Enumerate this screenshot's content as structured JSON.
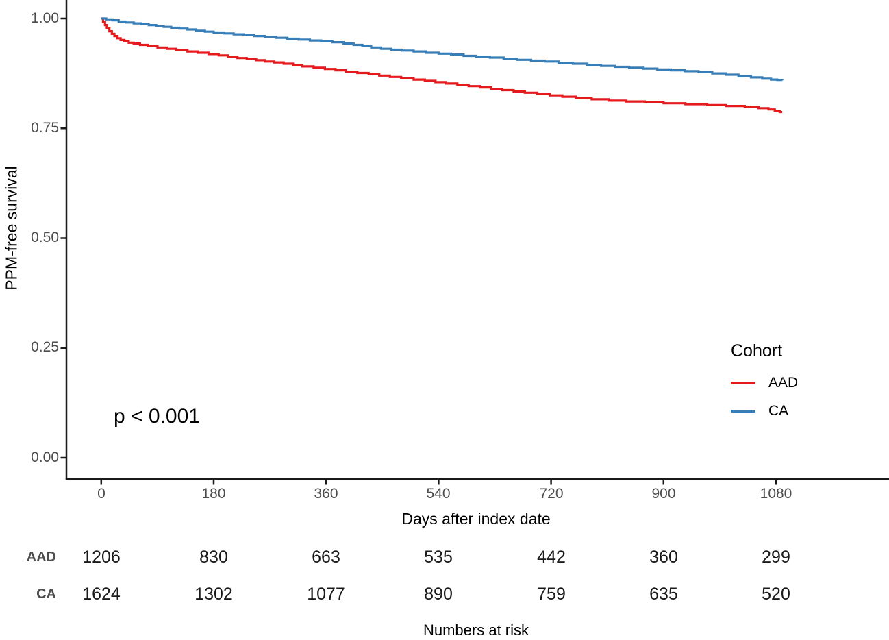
{
  "chart_data": {
    "type": "line",
    "subtype": "kaplan-meier-step",
    "title": "",
    "xlabel": "Days after index date",
    "ylabel": "PPM-free survival",
    "xlim": [
      0,
      1260
    ],
    "ylim": [
      0.0,
      1.0
    ],
    "x_ticks": [
      0,
      180,
      360,
      540,
      720,
      900,
      1080
    ],
    "y_ticks": [
      1.0,
      0.75,
      0.5,
      0.25,
      0.0
    ],
    "y_tick_labels": [
      "1.00",
      "0.75",
      "0.50",
      "0.25",
      "0.00"
    ],
    "grid": false,
    "annotation": "p < 0.001",
    "legend": {
      "title": "Cohort",
      "position": "right-lower",
      "entries": [
        {
          "label": "AAD",
          "color": "#E41A1C"
        },
        {
          "label": "CA",
          "color": "#377EB8"
        }
      ]
    },
    "series": [
      {
        "name": "AAD",
        "color": "#E41A1C",
        "points": [
          [
            0,
            1.0
          ],
          [
            3,
            0.992
          ],
          [
            6,
            0.985
          ],
          [
            9,
            0.978
          ],
          [
            13,
            0.971
          ],
          [
            17,
            0.965
          ],
          [
            21,
            0.96
          ],
          [
            26,
            0.955
          ],
          [
            31,
            0.951
          ],
          [
            37,
            0.948
          ],
          [
            44,
            0.945
          ],
          [
            52,
            0.943
          ],
          [
            62,
            0.94
          ],
          [
            75,
            0.937
          ],
          [
            90,
            0.934
          ],
          [
            105,
            0.931
          ],
          [
            120,
            0.928
          ],
          [
            138,
            0.925
          ],
          [
            155,
            0.922
          ],
          [
            172,
            0.919
          ],
          [
            188,
            0.916
          ],
          [
            203,
            0.913
          ],
          [
            218,
            0.91
          ],
          [
            233,
            0.908
          ],
          [
            248,
            0.905
          ],
          [
            262,
            0.902
          ],
          [
            277,
            0.9
          ],
          [
            292,
            0.897
          ],
          [
            307,
            0.894
          ],
          [
            322,
            0.891
          ],
          [
            340,
            0.888
          ],
          [
            358,
            0.885
          ],
          [
            375,
            0.882
          ],
          [
            392,
            0.879
          ],
          [
            410,
            0.876
          ],
          [
            428,
            0.873
          ],
          [
            445,
            0.87
          ],
          [
            462,
            0.867
          ],
          [
            480,
            0.864
          ],
          [
            500,
            0.861
          ],
          [
            518,
            0.858
          ],
          [
            535,
            0.855
          ],
          [
            552,
            0.852
          ],
          [
            570,
            0.849
          ],
          [
            588,
            0.846
          ],
          [
            606,
            0.843
          ],
          [
            624,
            0.84
          ],
          [
            642,
            0.837
          ],
          [
            660,
            0.834
          ],
          [
            678,
            0.831
          ],
          [
            698,
            0.828
          ],
          [
            718,
            0.825
          ],
          [
            738,
            0.822
          ],
          [
            760,
            0.819
          ],
          [
            785,
            0.816
          ],
          [
            812,
            0.813
          ],
          [
            840,
            0.811
          ],
          [
            870,
            0.809
          ],
          [
            900,
            0.807
          ],
          [
            935,
            0.805
          ],
          [
            970,
            0.803
          ],
          [
            1000,
            0.801
          ],
          [
            1030,
            0.799
          ],
          [
            1052,
            0.796
          ],
          [
            1068,
            0.793
          ],
          [
            1078,
            0.79
          ],
          [
            1086,
            0.787
          ],
          [
            1090,
            0.787
          ]
        ]
      },
      {
        "name": "CA",
        "color": "#377EB8",
        "points": [
          [
            0,
            1.0
          ],
          [
            8,
            0.998
          ],
          [
            18,
            0.996
          ],
          [
            28,
            0.993
          ],
          [
            40,
            0.991
          ],
          [
            52,
            0.989
          ],
          [
            64,
            0.987
          ],
          [
            76,
            0.985
          ],
          [
            88,
            0.983
          ],
          [
            100,
            0.981
          ],
          [
            112,
            0.979
          ],
          [
            125,
            0.977
          ],
          [
            138,
            0.975
          ],
          [
            152,
            0.972
          ],
          [
            166,
            0.97
          ],
          [
            180,
            0.968
          ],
          [
            196,
            0.966
          ],
          [
            212,
            0.964
          ],
          [
            228,
            0.962
          ],
          [
            245,
            0.96
          ],
          [
            262,
            0.958
          ],
          [
            280,
            0.956
          ],
          [
            298,
            0.954
          ],
          [
            316,
            0.952
          ],
          [
            334,
            0.95
          ],
          [
            352,
            0.948
          ],
          [
            370,
            0.946
          ],
          [
            388,
            0.943
          ],
          [
            404,
            0.94
          ],
          [
            418,
            0.937
          ],
          [
            432,
            0.934
          ],
          [
            448,
            0.931
          ],
          [
            464,
            0.929
          ],
          [
            482,
            0.927
          ],
          [
            500,
            0.925
          ],
          [
            520,
            0.922
          ],
          [
            540,
            0.92
          ],
          [
            560,
            0.918
          ],
          [
            580,
            0.915
          ],
          [
            600,
            0.913
          ],
          [
            622,
            0.911
          ],
          [
            644,
            0.908
          ],
          [
            666,
            0.906
          ],
          [
            688,
            0.904
          ],
          [
            710,
            0.902
          ],
          [
            732,
            0.899
          ],
          [
            755,
            0.897
          ],
          [
            778,
            0.894
          ],
          [
            800,
            0.892
          ],
          [
            822,
            0.89
          ],
          [
            845,
            0.888
          ],
          [
            868,
            0.886
          ],
          [
            890,
            0.884
          ],
          [
            912,
            0.882
          ],
          [
            934,
            0.88
          ],
          [
            956,
            0.878
          ],
          [
            978,
            0.875
          ],
          [
            1000,
            0.872
          ],
          [
            1020,
            0.869
          ],
          [
            1040,
            0.866
          ],
          [
            1058,
            0.863
          ],
          [
            1072,
            0.861
          ],
          [
            1082,
            0.86
          ],
          [
            1090,
            0.859
          ]
        ]
      }
    ]
  },
  "risk_table": {
    "caption": "Numbers at risk",
    "time_points": [
      0,
      180,
      360,
      540,
      720,
      900,
      1080
    ],
    "rows": [
      {
        "label": "AAD",
        "counts": [
          1206,
          830,
          663,
          535,
          442,
          360,
          299
        ]
      },
      {
        "label": "CA",
        "counts": [
          1624,
          1302,
          1077,
          890,
          759,
          635,
          520
        ]
      }
    ]
  },
  "style": {
    "axis_color": "#1a1a1a",
    "tick_label_color": "#4d4d4d",
    "background": "#ffffff"
  }
}
